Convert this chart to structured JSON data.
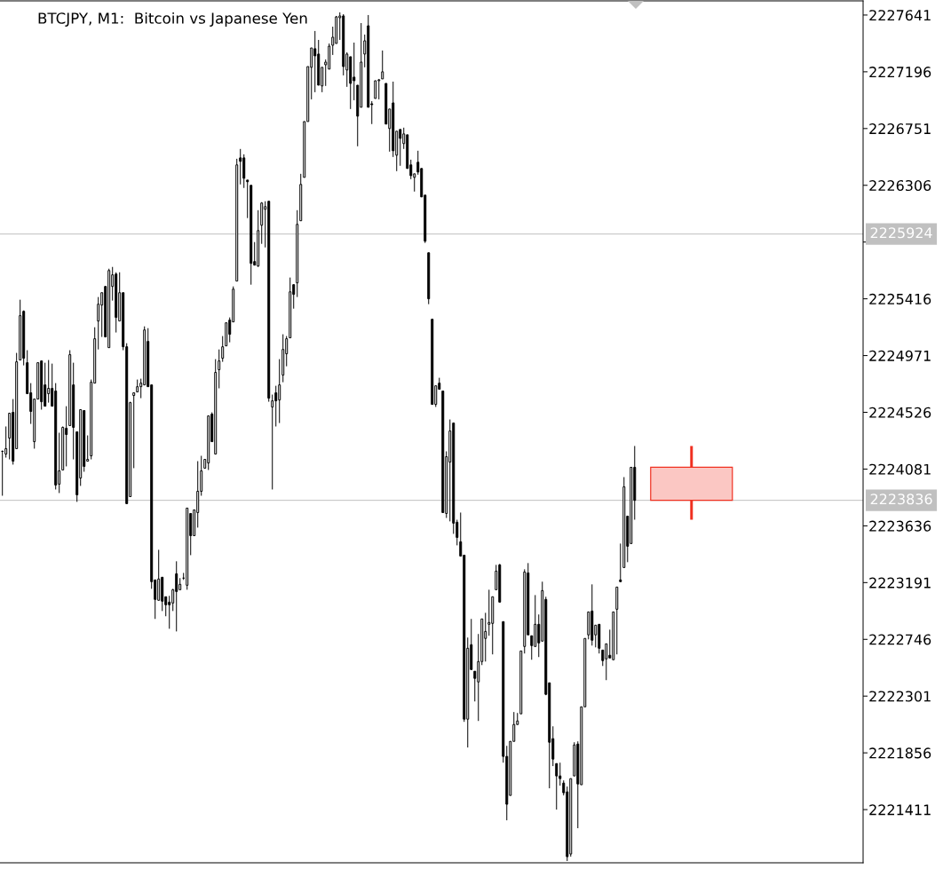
{
  "chart_data": {
    "type": "candlestick",
    "title": "BTCJPY, M1:  Bitcoin vs Japanese Yen",
    "categories": [
      null,
      null,
      null,
      null,
      null,
      null,
      null,
      null,
      null,
      null,
      null,
      null,
      null,
      null,
      null,
      null,
      null,
      null,
      null,
      null,
      null,
      null,
      null,
      null,
      null,
      null,
      null,
      null,
      null,
      null,
      null,
      null,
      null,
      null,
      null,
      null,
      null,
      null,
      null,
      null,
      null,
      null,
      null,
      null,
      null,
      null,
      null,
      null,
      null,
      null,
      null,
      null,
      null,
      null,
      null,
      null,
      null,
      null,
      null,
      null,
      null,
      null,
      null,
      null,
      null,
      null,
      null,
      null,
      null,
      null,
      null,
      null,
      null,
      null,
      null,
      null,
      null,
      null,
      null,
      null,
      null,
      null,
      null,
      null,
      null,
      null,
      null,
      null,
      null,
      null,
      null,
      null,
      null,
      null,
      null,
      null,
      null,
      null,
      null,
      null,
      null,
      null,
      null,
      null,
      null,
      null,
      null,
      null,
      null,
      null,
      null,
      null,
      null,
      null,
      null,
      null,
      null,
      null,
      null,
      null,
      null,
      null,
      null,
      null,
      null,
      null,
      null,
      null,
      null,
      null,
      null,
      null,
      null,
      null,
      null,
      null,
      null,
      null,
      null,
      null,
      null,
      null,
      null,
      null,
      null,
      null,
      null,
      null,
      null,
      null,
      null,
      null,
      null,
      null,
      null,
      null,
      null,
      null,
      null,
      null,
      null,
      null,
      null,
      null,
      null,
      null,
      null,
      null,
      null,
      null,
      null,
      null,
      null,
      null,
      null,
      null,
      null,
      null,
      null,
      null,
      null,
      null,
      null,
      null,
      null,
      null,
      null,
      null,
      null,
      null,
      null,
      null,
      null,
      null,
      null,
      null,
      null,
      null,
      null,
      null,
      null,
      null,
      null,
      null,
      null,
      null,
      null,
      null,
      null,
      null,
      null,
      null,
      null,
      null,
      null,
      null,
      null,
      null,
      null,
      null,
      null,
      null,
      null,
      null,
      null,
      null,
      null,
      null,
      null,
      null,
      null,
      null,
      null,
      null,
      null,
      null,
      null,
      null,
      null,
      null,
      null,
      null,
      null
    ],
    "series": [
      {
        "color": "#000000",
        "ohlc": [
          [
            2224220,
            2224227,
            2223872,
            2224220
          ],
          [
            2224199,
            2224415,
            2224171,
            2224241
          ],
          [
            2224324,
            2224519,
            2224157,
            2224519
          ],
          [
            2224526,
            2224630,
            2224116,
            2224143
          ],
          [
            2224241,
            2224992,
            2224241,
            2224922
          ],
          [
            2224936,
            2225409,
            2224936,
            2225284
          ],
          [
            2225318,
            2225325,
            2224894,
            2224950
          ],
          [
            2224915,
            2225013,
            2224672,
            2224672
          ],
          [
            2224679,
            2224755,
            2224435,
            2224533
          ],
          [
            2224296,
            2224630,
            2224241,
            2224630
          ],
          [
            2224630,
            2224915,
            2224630,
            2224915
          ],
          [
            2224929,
            2224929,
            2224547,
            2224609
          ],
          [
            2224741,
            2224915,
            2224574,
            2224574
          ],
          [
            2224672,
            2224936,
            2224602,
            2224714
          ],
          [
            2224714,
            2224908,
            2224574,
            2224574
          ],
          [
            2224693,
            2224755,
            2223921,
            2223956
          ],
          [
            2223963,
            2224366,
            2223893,
            2224067
          ],
          [
            2224074,
            2224415,
            2224074,
            2224408
          ],
          [
            2224401,
            2224574,
            2224102,
            2224352
          ],
          [
            2224422,
            2225013,
            2224422,
            2224978
          ],
          [
            2224741,
            2224915,
            2224157,
            2224408
          ],
          [
            2224373,
            2224373,
            2223824,
            2223879
          ],
          [
            2224011,
            2224547,
            2223949,
            2224547
          ],
          [
            2224540,
            2224540,
            2224060,
            2224102
          ],
          [
            2224143,
            2224345,
            2224143,
            2224157
          ],
          [
            2224185,
            2224783,
            2224157,
            2224762
          ],
          [
            2224755,
            2225193,
            2224755,
            2225103
          ],
          [
            2225242,
            2225430,
            2225019,
            2225374
          ],
          [
            2225367,
            2225464,
            2225117,
            2225464
          ],
          [
            2225513,
            2225513,
            2225117,
            2225117
          ],
          [
            2225033,
            2225652,
            2225033,
            2225638
          ],
          [
            2225513,
            2225666,
            2225402,
            2225604
          ],
          [
            2225610,
            2225624,
            2225152,
            2225270
          ],
          [
            2225242,
            2225624,
            2225242,
            2225464
          ],
          [
            2225464,
            2225464,
            2225013,
            2225040
          ],
          [
            2225040,
            2225068,
            2223810,
            2223810
          ],
          [
            2223865,
            2224609,
            2223865,
            2224602
          ],
          [
            2224658,
            2224679,
            2224088,
            2224679
          ],
          [
            2224686,
            2224783,
            2224686,
            2224727
          ],
          [
            2224727,
            2224790,
            2224637,
            2224755
          ],
          [
            2224741,
            2225200,
            2224741,
            2225172
          ],
          [
            2225082,
            2225186,
            2224727,
            2224727
          ],
          [
            2224741,
            2224741,
            2223142,
            2223198
          ],
          [
            2223212,
            2223212,
            2222906,
            2223059
          ],
          [
            2223052,
            2223448,
            2223052,
            2223219
          ],
          [
            2223233,
            2223233,
            2222968,
            2223045
          ],
          [
            2223080,
            2223080,
            2222927,
            2223017
          ],
          [
            2223038,
            2223087,
            2222829,
            2223017
          ],
          [
            2223031,
            2223142,
            2222968,
            2223135
          ],
          [
            2223260,
            2223358,
            2222808,
            2223121
          ],
          [
            2223135,
            2223226,
            2223135,
            2223177
          ],
          [
            2223226,
            2223267,
            2223212,
            2223226
          ],
          [
            2223170,
            2223775,
            2223135,
            2223775
          ],
          [
            2223733,
            2223733,
            2223406,
            2223559
          ],
          [
            2223559,
            2223761,
            2223559,
            2223761
          ],
          [
            2223740,
            2224143,
            2223622,
            2223907
          ],
          [
            2223907,
            2224185,
            2223872,
            2224067
          ],
          [
            2224088,
            2224157,
            2224088,
            2224157
          ],
          [
            2224129,
            2224498,
            2224074,
            2224498
          ],
          [
            2224512,
            2224526,
            2224296,
            2224296
          ],
          [
            2224199,
            2224943,
            2224199,
            2224839
          ],
          [
            2224860,
            2225019,
            2224714,
            2224929
          ],
          [
            2224950,
            2225124,
            2224922,
            2225040
          ],
          [
            2225047,
            2225228,
            2225047,
            2225228
          ],
          [
            2225249,
            2225270,
            2225075,
            2225138
          ],
          [
            2225235,
            2225513,
            2225235,
            2225492
          ],
          [
            2225555,
            2226514,
            2225555,
            2226466
          ],
          [
            2226521,
            2226591,
            2226313,
            2226494
          ],
          [
            2226521,
            2226549,
            2226285,
            2226361
          ],
          [
            2226347,
            2226347,
            2226049,
            2226334
          ],
          [
            2226306,
            2226306,
            2225527,
            2225694
          ],
          [
            2225708,
            2225861,
            2225680,
            2225680
          ],
          [
            2225673,
            2226111,
            2225666,
            2225951
          ],
          [
            2225993,
            2226174,
            2225847,
            2226167
          ],
          [
            2226118,
            2226181,
            2225819,
            2226139
          ],
          [
            2226181,
            2226181,
            2224609,
            2224637
          ],
          [
            2224568,
            2224665,
            2223921,
            2224616
          ],
          [
            2224679,
            2224734,
            2224415,
            2224616
          ],
          [
            2224623,
            2224943,
            2224442,
            2224741
          ],
          [
            2224818,
            2225138,
            2224762,
            2225019
          ],
          [
            2224985,
            2225124,
            2224887,
            2225103
          ],
          [
            2225110,
            2225583,
            2225110,
            2225471
          ],
          [
            2225527,
            2225527,
            2225339,
            2225451
          ],
          [
            2225541,
            2226111,
            2225430,
            2226000
          ],
          [
            2226028,
            2226396,
            2226028,
            2226313
          ],
          [
            2226368,
            2226806,
            2226368,
            2226806
          ],
          [
            2226806,
            2227237,
            2226806,
            2227237
          ],
          [
            2227231,
            2227383,
            2226980,
            2227383
          ],
          [
            2227377,
            2227516,
            2227036,
            2227321
          ],
          [
            2227335,
            2227446,
            2227091,
            2227091
          ],
          [
            2227085,
            2227231,
            2227036,
            2227231
          ],
          [
            2227251,
            2227293,
            2227085,
            2227272
          ],
          [
            2227217,
            2227418,
            2227217,
            2227397
          ],
          [
            2227404,
            2227550,
            2227328,
            2227467
          ],
          [
            2227418,
            2227634,
            2227418,
            2227627
          ],
          [
            2227620,
            2227662,
            2227446,
            2227634
          ],
          [
            2227634,
            2227648,
            2227168,
            2227237
          ],
          [
            2227210,
            2227349,
            2227078,
            2227335
          ],
          [
            2227314,
            2227314,
            2226904,
            2227105
          ],
          [
            2227154,
            2227425,
            2226973,
            2227126
          ],
          [
            2227091,
            2227091,
            2226612,
            2226848
          ],
          [
            2226918,
            2227578,
            2226918,
            2227272
          ],
          [
            2227335,
            2227488,
            2227231,
            2227439
          ],
          [
            2227557,
            2227641,
            2226918,
            2226918
          ],
          [
            2226945,
            2226966,
            2226786,
            2226938
          ],
          [
            2226987,
            2227126,
            2226987,
            2227126
          ],
          [
            2227126,
            2227140,
            2226980,
            2227133
          ],
          [
            2227140,
            2227363,
            2227140,
            2227196
          ],
          [
            2227105,
            2227105,
            2226786,
            2226786
          ],
          [
            2226751,
            2226904,
            2226570,
            2226904
          ],
          [
            2226952,
            2227119,
            2226528,
            2226577
          ],
          [
            2226542,
            2226730,
            2226417,
            2226730
          ],
          [
            2226744,
            2226744,
            2226459,
            2226674
          ],
          [
            2226633,
            2226758,
            2226591,
            2226709
          ],
          [
            2226702,
            2226702,
            2226438,
            2226438
          ],
          [
            2226466,
            2226507,
            2226354,
            2226382
          ],
          [
            2226368,
            2226396,
            2226257,
            2226396
          ],
          [
            2226487,
            2226577,
            2226389,
            2226410
          ],
          [
            2226438,
            2226438,
            2226215,
            2226215
          ],
          [
            2226229,
            2226229,
            2225854,
            2225868
          ],
          [
            2225777,
            2225777,
            2225374,
            2225416
          ],
          [
            2225256,
            2225256,
            2224588,
            2224588
          ],
          [
            2224588,
            2224734,
            2224568,
            2224734
          ],
          [
            2224755,
            2224797,
            2224707,
            2224707
          ],
          [
            2224693,
            2224693,
            2223740,
            2223740
          ],
          [
            2223733,
            2224220,
            2223698,
            2224178
          ],
          [
            2224136,
            2224470,
            2223671,
            2224380
          ],
          [
            2224442,
            2224442,
            2223573,
            2223657
          ],
          [
            2223664,
            2223684,
            2223483,
            2223545
          ],
          [
            2223511,
            2223740,
            2223399,
            2223399
          ],
          [
            2223406,
            2223406,
            2222099,
            2222120
          ],
          [
            2222120,
            2222760,
            2221898,
            2222676
          ],
          [
            2222704,
            2222906,
            2222509,
            2222509
          ],
          [
            2222496,
            2222496,
            2222259,
            2222440
          ],
          [
            2222412,
            2222788,
            2222106,
            2222572
          ],
          [
            2222572,
            2222906,
            2222544,
            2222906
          ],
          [
            2222753,
            2222954,
            2222572,
            2222808
          ],
          [
            2222864,
            2223135,
            2222774,
            2222878
          ],
          [
            2222871,
            2223080,
            2222628,
            2223080
          ],
          [
            2223135,
            2223330,
            2223135,
            2223281
          ],
          [
            2223330,
            2223337,
            2223038,
            2223038
          ],
          [
            2222885,
            2222885,
            2221779,
            2221828
          ],
          [
            2221828,
            2221911,
            2221327,
            2221453
          ],
          [
            2221522,
            2221946,
            2221522,
            2221946
          ],
          [
            2221946,
            2222176,
            2221946,
            2222078
          ],
          [
            2222078,
            2222169,
            2222078,
            2222106
          ],
          [
            2222162,
            2222655,
            2222162,
            2222655
          ],
          [
            2222690,
            2223295,
            2222635,
            2223274
          ],
          [
            2223267,
            2223344,
            2222781,
            2222781
          ],
          [
            2222774,
            2222774,
            2222586,
            2222697
          ],
          [
            2222690,
            2223093,
            2222690,
            2222864
          ],
          [
            2222864,
            2222941,
            2222607,
            2222718
          ],
          [
            2222732,
            2223198,
            2222732,
            2223128
          ],
          [
            2223059,
            2223080,
            2222308,
            2222315
          ],
          [
            2222405,
            2222405,
            2221578,
            2221939
          ],
          [
            2221967,
            2222064,
            2221752,
            2221807
          ],
          [
            2221772,
            2221772,
            2221411,
            2221675
          ],
          [
            2221675,
            2221779,
            2221599,
            2221654
          ],
          [
            2221619,
            2221640,
            2221522,
            2221543
          ],
          [
            2221550,
            2221592,
            2221008,
            2221042
          ],
          [
            2221063,
            2221654,
            2221042,
            2221654
          ],
          [
            2221675,
            2221939,
            2221675,
            2221918
          ],
          [
            2221925,
            2221946,
            2221265,
            2221612
          ],
          [
            2221606,
            2222217,
            2221606,
            2222217
          ],
          [
            2222217,
            2222753,
            2222217,
            2222753
          ],
          [
            2222781,
            2222961,
            2222746,
            2222961
          ],
          [
            2222968,
            2223177,
            2222697,
            2222739
          ],
          [
            2222781,
            2222857,
            2222683,
            2222857
          ],
          [
            2222864,
            2222864,
            2222635,
            2222676
          ],
          [
            2222662,
            2222662,
            2222537,
            2222579
          ],
          [
            2222593,
            2222711,
            2222426,
            2222711
          ],
          [
            2222621,
            2222822,
            2222600,
            2222600
          ],
          [
            2222586,
            2222961,
            2222586,
            2222961
          ],
          [
            2222982,
            2223156,
            2222628,
            2223156
          ],
          [
            2223212,
            2223497,
            2223198,
            2223198
          ],
          [
            2223309,
            2224018,
            2223309,
            2223942
          ],
          [
            2223712,
            2223712,
            2223351,
            2223476
          ],
          [
            2223497,
            2224095,
            2223497,
            2224095
          ],
          [
            2224095,
            2224262,
            2223684,
            2223836
          ],
          null,
          null,
          null,
          null,
          null,
          null,
          null,
          null,
          null,
          null,
          null,
          null,
          null,
          null,
          null,
          null,
          null,
          null,
          null,
          null,
          null,
          null,
          null,
          null,
          null,
          null,
          null,
          null,
          null,
          null,
          null,
          null,
          null,
          null,
          null,
          null,
          null,
          null,
          null,
          null,
          null,
          null,
          null,
          null,
          null,
          null,
          null,
          null,
          null,
          null,
          null,
          null,
          null,
          null,
          null,
          null,
          null,
          null,
          null,
          null,
          null,
          null,
          null,
          null
        ]
      },
      {
        "color": "#f03020",
        "ohlc": [
          null,
          null,
          null,
          null,
          null,
          null,
          null,
          null,
          null,
          null,
          null,
          null,
          null,
          null,
          null,
          null,
          null,
          null,
          null,
          null,
          null,
          null,
          null,
          null,
          null,
          null,
          null,
          null,
          null,
          null,
          null,
          null,
          null,
          null,
          null,
          null,
          null,
          null,
          null,
          null,
          null,
          null,
          null,
          null,
          null,
          null,
          null,
          null,
          null,
          null,
          null,
          null,
          null,
          null,
          null,
          null,
          null,
          null,
          null,
          null,
          null,
          null,
          null,
          null,
          null,
          null,
          null,
          null,
          null,
          null,
          null,
          null,
          null,
          null,
          null,
          null,
          null,
          null,
          null,
          null,
          null,
          null,
          null,
          null,
          null,
          null,
          null,
          null,
          null,
          null,
          null,
          null,
          null,
          null,
          null,
          null,
          null,
          null,
          null,
          null,
          null,
          null,
          null,
          null,
          null,
          null,
          null,
          null,
          null,
          null,
          null,
          null,
          null,
          null,
          null,
          null,
          null,
          null,
          null,
          null,
          null,
          null,
          null,
          null,
          null,
          null,
          null,
          null,
          null,
          null,
          null,
          null,
          null,
          null,
          null,
          null,
          null,
          null,
          null,
          null,
          null,
          null,
          null,
          null,
          null,
          null,
          null,
          null,
          null,
          null,
          null,
          null,
          null,
          null,
          null,
          null,
          null,
          null,
          null,
          null,
          null,
          null,
          null,
          null,
          null,
          null,
          null,
          null,
          null,
          null,
          null,
          null,
          null,
          null,
          null,
          null,
          null,
          null,
          null,
          null,
          null,
          null,
          null,
          null,
          null,
          null,
          null,
          null,
          null,
          null,
          null,
          null,
          null,
          null,
          [
            2224095,
            2224262,
            2223684,
            2223836
          ],
          null,
          null,
          null,
          null,
          null,
          null,
          null,
          null,
          null,
          null,
          null,
          null,
          null,
          null,
          null,
          null,
          null,
          null,
          null,
          null,
          null,
          null,
          null,
          null,
          null,
          null,
          null,
          null,
          null,
          null,
          null,
          null,
          null,
          null,
          null,
          null,
          null,
          null,
          null,
          null,
          null,
          null,
          null,
          null,
          null,
          null,
          null,
          null
        ]
      }
    ],
    "ylim": [
      2220994,
      2227752
    ],
    "yticks": [
      2221411,
      2221856,
      2222301,
      2222746,
      2223191,
      2223636,
      2224081,
      2224526,
      2224971,
      2225416,
      {
        "value": 2225861,
        "label": null
      },
      2226306,
      2226751,
      2227196,
      2227641
    ],
    "ref_lines": [
      {
        "axis": "y",
        "value": 2225924,
        "label": "2225924",
        "color": "#c0c0c0"
      },
      {
        "axis": "y",
        "value": 2223836,
        "label": "2223836",
        "color": "#c0c0c0"
      }
    ]
  }
}
